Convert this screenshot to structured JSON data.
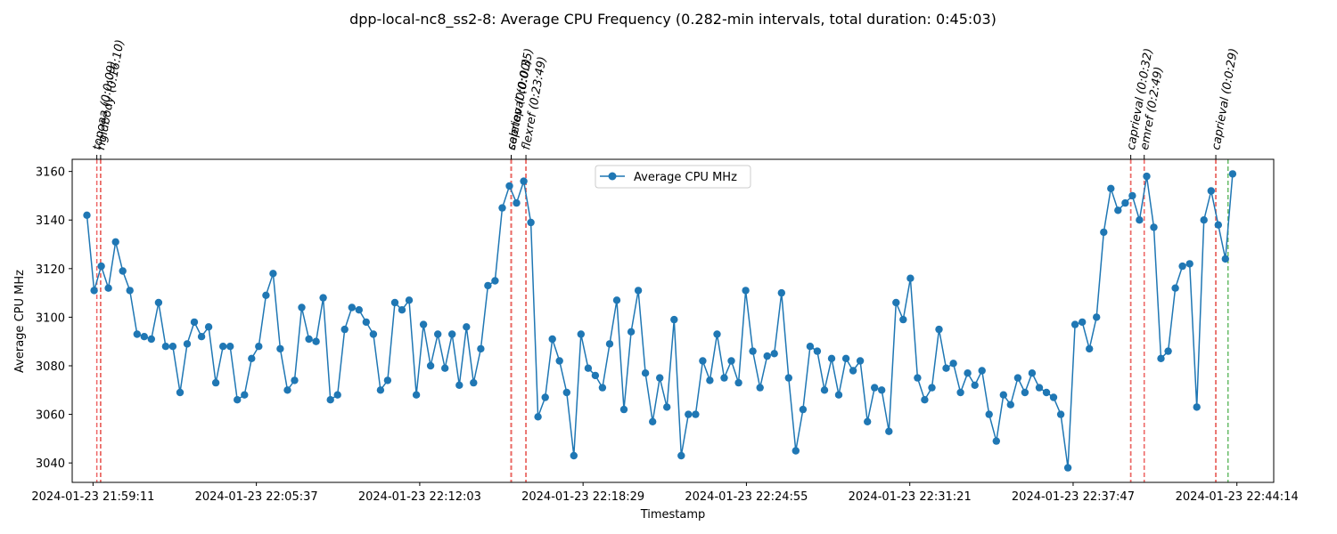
{
  "chart_data": {
    "type": "line",
    "title": "dpp-local-nc8_ss2-8: Average CPU Frequency (0.282-min intervals, total duration: 0:45:03)",
    "xlabel": "Timestamp",
    "ylabel": "Average CPU MHz",
    "ylim": [
      3032,
      3165
    ],
    "yticks": [
      3040,
      3060,
      3080,
      3100,
      3120,
      3140,
      3160
    ],
    "xlim_minutes": [
      -0.82,
      46.5
    ],
    "xticks": [
      {
        "label": "2024-01-23 21:59:11",
        "minute": 0.0
      },
      {
        "label": "2024-01-23 22:05:37",
        "minute": 6.433
      },
      {
        "label": "2024-01-23 22:12:03",
        "minute": 12.867
      },
      {
        "label": "2024-01-23 22:18:29",
        "minute": 19.3
      },
      {
        "label": "2024-01-23 22:24:55",
        "minute": 25.733
      },
      {
        "label": "2024-01-23 22:31:21",
        "minute": 32.167
      },
      {
        "label": "2024-01-23 22:37:47",
        "minute": 38.6
      },
      {
        "label": "2024-01-23 22:44:14",
        "minute": 45.05
      }
    ],
    "legend": {
      "entries": [
        "Average CPU MHz"
      ],
      "placement": "top-center"
    },
    "grid": false,
    "series": [
      {
        "name": "Average CPU MHz",
        "color": "#1f77b4",
        "interval_minutes": 0.282,
        "start_minute": -0.24,
        "values": [
          3142,
          3111,
          3121,
          3112,
          3131,
          3119,
          3111,
          3093,
          3092,
          3091,
          3106,
          3088,
          3088,
          3069,
          3089,
          3098,
          3092,
          3096,
          3073,
          3088,
          3088,
          3066,
          3068,
          3083,
          3088,
          3109,
          3118,
          3087,
          3070,
          3074,
          3104,
          3091,
          3090,
          3108,
          3066,
          3068,
          3095,
          3104,
          3103,
          3098,
          3093,
          3070,
          3074,
          3106,
          3103,
          3107,
          3068,
          3097,
          3080,
          3093,
          3079,
          3093,
          3072,
          3096,
          3073,
          3087,
          3113,
          3115,
          3145,
          3154,
          3147,
          3156,
          3139,
          3059,
          3067,
          3091,
          3082,
          3069,
          3043,
          3093,
          3079,
          3076,
          3071,
          3089,
          3107,
          3062,
          3094,
          3111,
          3077,
          3057,
          3075,
          3063,
          3099,
          3043,
          3060,
          3060,
          3082,
          3074,
          3093,
          3075,
          3082,
          3073,
          3111,
          3086,
          3071,
          3084,
          3085,
          3110,
          3075,
          3045,
          3062,
          3088,
          3086,
          3070,
          3083,
          3068,
          3083,
          3078,
          3082,
          3057,
          3071,
          3070,
          3053,
          3106,
          3099,
          3116,
          3075,
          3066,
          3071,
          3095,
          3079,
          3081,
          3069,
          3077,
          3072,
          3078,
          3060,
          3049,
          3068,
          3064,
          3075,
          3069,
          3077,
          3071,
          3069,
          3067,
          3060,
          3038,
          3097,
          3098,
          3087,
          3100,
          3135,
          3153,
          3144,
          3147,
          3150,
          3140,
          3158,
          3137,
          3083,
          3086,
          3112,
          3121,
          3122,
          3063,
          3140,
          3152,
          3138,
          3124,
          3159
        ]
      }
    ],
    "task_markers": [
      {
        "label": "topoaa (0:0:09)",
        "start_minute": 0.15,
        "end_minute": 0.3
      },
      {
        "label": "rigidbody (0:16:10)",
        "start_minute": 0.3,
        "end_minute": 16.47
      },
      {
        "label": "seletop (0:0:00)",
        "start_minute": 16.47,
        "end_minute": 16.47
      },
      {
        "label": "caprieval (0:0:35)",
        "start_minute": 16.47,
        "end_minute": 17.05
      },
      {
        "label": "flexref (0:23:49)",
        "start_minute": 17.05,
        "end_minute": 40.87
      },
      {
        "label": "caprieval (0:0:32)",
        "start_minute": 40.87,
        "end_minute": 41.4
      },
      {
        "label": "emref (0:2:49)",
        "start_minute": 41.4,
        "end_minute": 44.22
      },
      {
        "label": "caprieval (0:0:29)",
        "start_minute": 44.22,
        "end_minute": 44.7
      }
    ],
    "marker_colors": {
      "start": "#ee6666",
      "end": "#c0532b",
      "last_end": "#66bb66"
    }
  }
}
